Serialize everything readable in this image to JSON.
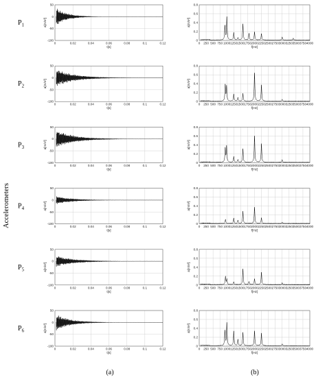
{
  "figure": {
    "ylabel": "Accelerometers",
    "panel_labels": [
      "(a)",
      "(b)"
    ]
  },
  "chart_data": {
    "type": "line",
    "layout": "grid",
    "rows": [
      "P1",
      "P2",
      "P3",
      "P4",
      "P5",
      "P6"
    ],
    "columns": [
      {
        "panel": "(a)",
        "xlabel": "t[s]",
        "ylabel": "a[m/s²]",
        "xlim": [
          0,
          0.12
        ],
        "ylim": [
          -100,
          50
        ],
        "xticks": [
          "0",
          "0.02",
          "0.04",
          "0.06",
          "0.08",
          "0.1",
          "0.12"
        ],
        "yticks": [
          "50",
          "0",
          "-50",
          "-100"
        ],
        "grid": true,
        "series_shape": "decaying oscillation",
        "peak_amplitude": [
          38,
          38,
          38,
          18,
          24,
          34
        ],
        "decay_time_constant": [
          0.012,
          0.02,
          0.02,
          0.018,
          0.02,
          0.016
        ]
      },
      {
        "panel": "(b)",
        "xlabel": "f[Hz]",
        "ylabel": "a[m/s²]",
        "xlim": [
          0,
          4000
        ],
        "ylim": [
          0,
          0.8
        ],
        "xticks": [
          "0",
          "250",
          "500",
          "750",
          "1000",
          "1250",
          "1500",
          "1750",
          "2000",
          "2250",
          "2500",
          "2750",
          "3000",
          "3250",
          "3500",
          "3750",
          "4000"
        ],
        "yticks": [
          "0.8",
          "0.6",
          "0.4",
          "0.2",
          "0"
        ],
        "grid": true,
        "peaks": [
          [
            [
              930,
              0.32
            ],
            [
              1000,
              0.52
            ],
            [
              1250,
              0.17
            ],
            [
              1400,
              0.05
            ],
            [
              1580,
              0.36
            ],
            [
              1800,
              0.15
            ],
            [
              2000,
              0.18
            ],
            [
              2250,
              0.14
            ],
            [
              3000,
              0.07
            ],
            [
              3400,
              0.04
            ]
          ],
          [
            [
              940,
              0.36
            ],
            [
              990,
              0.33
            ],
            [
              1250,
              0.16
            ],
            [
              1400,
              0.08
            ],
            [
              1580,
              0.17
            ],
            [
              2000,
              0.63
            ],
            [
              2250,
              0.36
            ],
            [
              3000,
              0.04
            ]
          ],
          [
            [
              940,
              0.31
            ],
            [
              990,
              0.36
            ],
            [
              1250,
              0.13
            ],
            [
              1400,
              0.06
            ],
            [
              1580,
              0.3
            ],
            [
              2000,
              0.59
            ],
            [
              2250,
              0.42
            ],
            [
              3000,
              0.06
            ]
          ],
          [
            [
              950,
              0.09
            ],
            [
              1250,
              0.12
            ],
            [
              1400,
              0.07
            ],
            [
              1580,
              0.27
            ],
            [
              2000,
              0.36
            ],
            [
              2250,
              0.13
            ],
            [
              3000,
              0.03
            ]
          ],
          [
            [
              950,
              0.18
            ],
            [
              1000,
              0.12
            ],
            [
              1250,
              0.06
            ],
            [
              1580,
              0.35
            ],
            [
              1800,
              0.07
            ],
            [
              2000,
              0.13
            ],
            [
              2250,
              0.28
            ],
            [
              3000,
              0.04
            ]
          ],
          [
            [
              930,
              0.33
            ],
            [
              1000,
              0.52
            ],
            [
              1250,
              0.33
            ],
            [
              1400,
              0.14
            ],
            [
              1580,
              0.3
            ],
            [
              2000,
              0.33
            ],
            [
              2250,
              0.28
            ],
            [
              3000,
              0.04
            ]
          ]
        ],
        "baseline_noise": 0.015
      }
    ]
  }
}
